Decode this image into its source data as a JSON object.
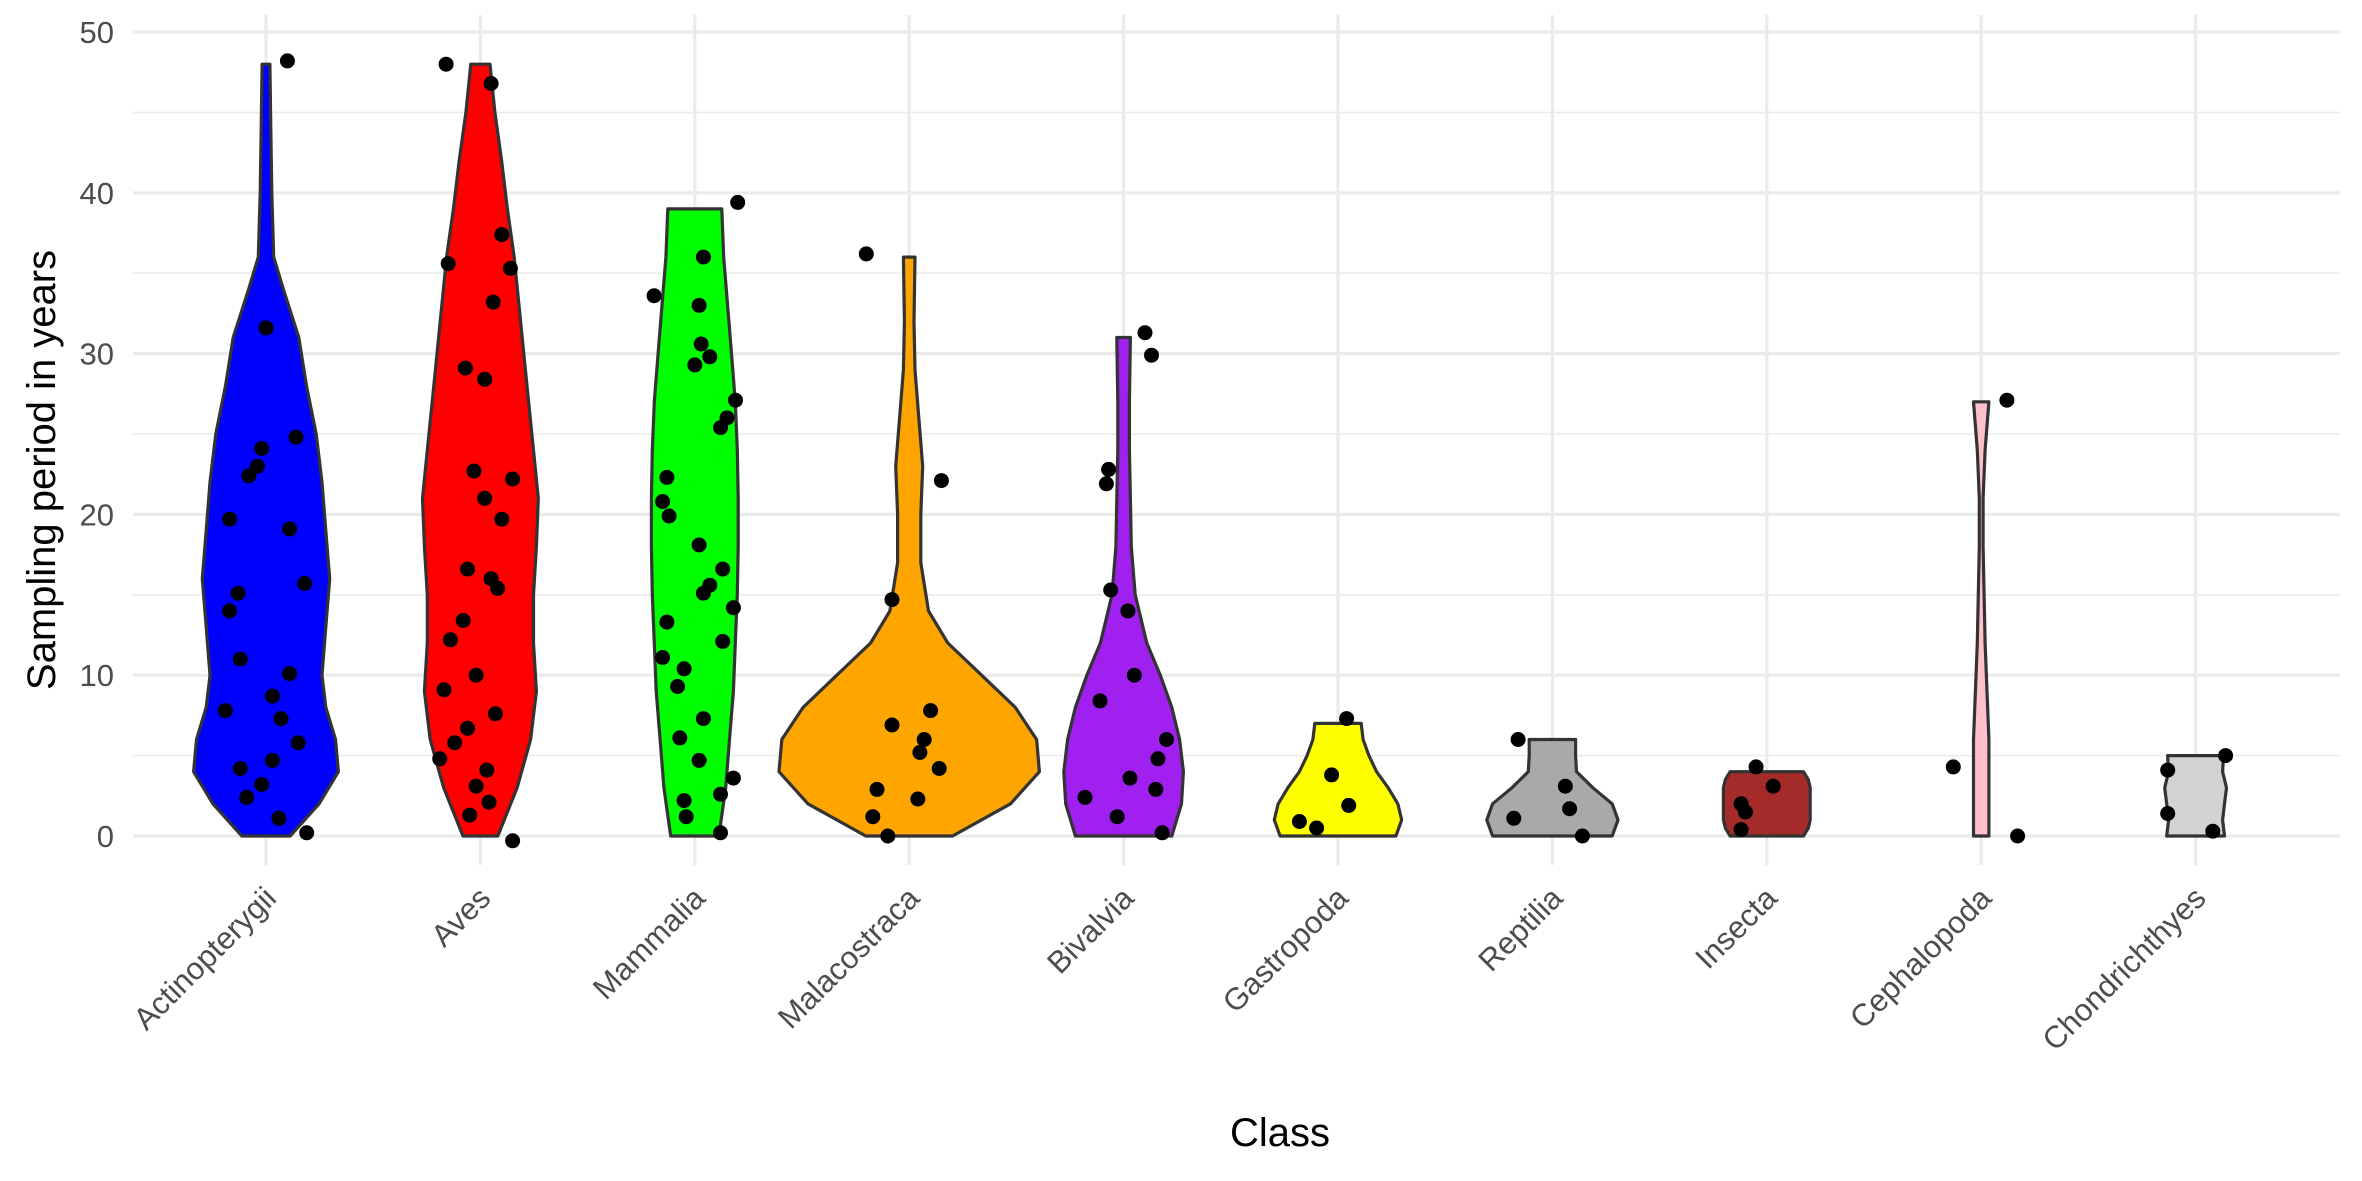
{
  "chart_data": {
    "type": "violin",
    "title": "",
    "xlabel": "Class",
    "ylabel": "Sampling period in years",
    "ylim": [
      -2.5,
      50
    ],
    "yticks": [
      0,
      10,
      20,
      30,
      40,
      50
    ],
    "grid": true,
    "legend": "none",
    "categories": [
      "Actinopterygii",
      "Aves",
      "Mammalia",
      "Malacostraca",
      "Bivalvia",
      "Gastropoda",
      "Reptilia",
      "Insecta",
      "Cephalopoda",
      "Chondrichthyes"
    ],
    "series": [
      {
        "name": "Actinopterygii",
        "color": "#0000FF",
        "range": [
          0,
          48
        ],
        "points": [
          48.2,
          31.6,
          24.8,
          24.1,
          23.0,
          22.4,
          19.7,
          19.1,
          15.7,
          15.1,
          14.0,
          11.0,
          10.1,
          8.7,
          7.8,
          7.3,
          5.8,
          4.7,
          4.2,
          3.2,
          2.4,
          1.1,
          0.2
        ],
        "jitter": [
          0.1,
          0.0,
          0.14,
          -0.02,
          -0.04,
          -0.08,
          -0.17,
          0.11,
          0.18,
          -0.13,
          -0.17,
          -0.12,
          0.11,
          0.03,
          -0.19,
          0.07,
          0.15,
          0.03,
          -0.12,
          -0.02,
          -0.09,
          0.06,
          0.19
        ],
        "profile": [
          [
            0,
            0.25
          ],
          [
            2,
            0.55
          ],
          [
            4,
            0.75
          ],
          [
            6,
            0.72
          ],
          [
            8,
            0.62
          ],
          [
            10,
            0.58
          ],
          [
            13,
            0.62
          ],
          [
            16,
            0.66
          ],
          [
            19,
            0.62
          ],
          [
            22,
            0.58
          ],
          [
            25,
            0.52
          ],
          [
            28,
            0.42
          ],
          [
            31,
            0.34
          ],
          [
            34,
            0.18
          ],
          [
            36,
            0.08
          ],
          [
            40,
            0.06
          ],
          [
            44,
            0.05
          ],
          [
            48,
            0.04
          ]
        ]
      },
      {
        "name": "Aves",
        "color": "#FF0000",
        "range": [
          0,
          48
        ],
        "points": [
          48.0,
          46.8,
          37.4,
          35.6,
          35.3,
          33.2,
          29.1,
          28.4,
          22.7,
          22.2,
          21.0,
          19.7,
          16.6,
          16.0,
          15.4,
          13.4,
          12.2,
          10.0,
          9.1,
          7.6,
          6.7,
          5.8,
          4.8,
          4.1,
          3.1,
          2.1,
          1.3,
          -0.3
        ],
        "jitter": [
          -0.16,
          0.05,
          0.1,
          -0.15,
          0.14,
          0.06,
          -0.07,
          0.02,
          -0.03,
          0.15,
          0.02,
          0.1,
          -0.06,
          0.05,
          0.08,
          -0.08,
          -0.14,
          -0.02,
          -0.17,
          0.07,
          -0.06,
          -0.12,
          -0.19,
          0.03,
          -0.02,
          0.04,
          -0.05,
          0.15
        ],
        "profile": [
          [
            0,
            0.18
          ],
          [
            3,
            0.38
          ],
          [
            6,
            0.52
          ],
          [
            9,
            0.58
          ],
          [
            12,
            0.55
          ],
          [
            15,
            0.55
          ],
          [
            18,
            0.58
          ],
          [
            21,
            0.6
          ],
          [
            24,
            0.55
          ],
          [
            27,
            0.5
          ],
          [
            30,
            0.45
          ],
          [
            33,
            0.4
          ],
          [
            36,
            0.35
          ],
          [
            39,
            0.28
          ],
          [
            42,
            0.22
          ],
          [
            45,
            0.15
          ],
          [
            48,
            0.1
          ]
        ]
      },
      {
        "name": "Mammalia",
        "color": "#00FF00",
        "range": [
          0,
          39
        ],
        "points": [
          39.4,
          36.0,
          33.6,
          33.0,
          30.6,
          29.8,
          29.3,
          27.1,
          26.0,
          25.4,
          22.3,
          20.8,
          19.9,
          18.1,
          16.6,
          15.6,
          15.1,
          14.2,
          13.3,
          12.1,
          11.1,
          10.4,
          9.3,
          7.3,
          6.1,
          4.7,
          3.6,
          2.6,
          2.2,
          1.2,
          0.2
        ],
        "jitter": [
          0.2,
          0.04,
          -0.19,
          0.02,
          0.03,
          0.07,
          0.0,
          0.19,
          0.15,
          0.12,
          -0.13,
          -0.15,
          -0.12,
          0.02,
          0.13,
          0.07,
          0.04,
          0.18,
          -0.13,
          0.13,
          -0.15,
          -0.05,
          -0.08,
          0.04,
          -0.07,
          0.02,
          0.18,
          0.12,
          -0.05,
          -0.04,
          0.12
        ],
        "profile": [
          [
            0,
            0.25
          ],
          [
            3,
            0.32
          ],
          [
            6,
            0.36
          ],
          [
            9,
            0.4
          ],
          [
            12,
            0.42
          ],
          [
            15,
            0.44
          ],
          [
            18,
            0.45
          ],
          [
            21,
            0.45
          ],
          [
            24,
            0.44
          ],
          [
            27,
            0.42
          ],
          [
            30,
            0.38
          ],
          [
            33,
            0.34
          ],
          [
            36,
            0.3
          ],
          [
            39,
            0.28
          ]
        ]
      },
      {
        "name": "Malacostraca",
        "color": "#FFA500",
        "range": [
          0,
          36
        ],
        "points": [
          36.2,
          22.1,
          14.7,
          7.8,
          6.9,
          6.0,
          5.2,
          4.2,
          2.9,
          2.3,
          1.2,
          0.0
        ],
        "jitter": [
          -0.2,
          0.15,
          -0.08,
          0.1,
          -0.08,
          0.07,
          0.05,
          0.14,
          -0.15,
          0.04,
          -0.17,
          -0.1
        ],
        "profile": [
          [
            0,
            0.45
          ],
          [
            2,
            1.05
          ],
          [
            4,
            1.35
          ],
          [
            6,
            1.32
          ],
          [
            8,
            1.1
          ],
          [
            10,
            0.75
          ],
          [
            12,
            0.4
          ],
          [
            14,
            0.2
          ],
          [
            17,
            0.12
          ],
          [
            20,
            0.12
          ],
          [
            23,
            0.14
          ],
          [
            26,
            0.1
          ],
          [
            29,
            0.06
          ],
          [
            32,
            0.05
          ],
          [
            36,
            0.06
          ]
        ]
      },
      {
        "name": "Bivalvia",
        "color": "#A020F0",
        "range": [
          0,
          31
        ],
        "points": [
          31.3,
          29.9,
          22.8,
          21.9,
          15.3,
          14.0,
          10.0,
          8.4,
          6.0,
          4.8,
          3.6,
          2.9,
          2.4,
          1.2,
          0.2
        ],
        "jitter": [
          0.1,
          0.13,
          -0.07,
          -0.08,
          -0.06,
          0.02,
          0.05,
          -0.11,
          0.2,
          0.16,
          0.03,
          0.15,
          -0.18,
          -0.03,
          0.18
        ],
        "profile": [
          [
            0,
            0.5
          ],
          [
            2,
            0.6
          ],
          [
            4,
            0.62
          ],
          [
            6,
            0.58
          ],
          [
            8,
            0.5
          ],
          [
            10,
            0.38
          ],
          [
            12,
            0.24
          ],
          [
            15,
            0.12
          ],
          [
            18,
            0.08
          ],
          [
            21,
            0.07
          ],
          [
            24,
            0.06
          ],
          [
            27,
            0.06
          ],
          [
            31,
            0.07
          ]
        ]
      },
      {
        "name": "Gastropoda",
        "color": "#FFFF00",
        "range": [
          0,
          7
        ],
        "points": [
          7.3,
          3.8,
          1.9,
          0.9,
          0.5
        ],
        "jitter": [
          0.04,
          -0.03,
          0.05,
          -0.18,
          -0.1
        ],
        "profile": [
          [
            0,
            0.6
          ],
          [
            1,
            0.66
          ],
          [
            2,
            0.62
          ],
          [
            3,
            0.52
          ],
          [
            4,
            0.4
          ],
          [
            5,
            0.32
          ],
          [
            6,
            0.26
          ],
          [
            7,
            0.24
          ]
        ]
      },
      {
        "name": "Reptilia",
        "color": "#A9A9A9",
        "range": [
          0,
          6
        ],
        "points": [
          6.0,
          3.1,
          1.7,
          1.1,
          0.0
        ],
        "jitter": [
          -0.16,
          0.06,
          0.08,
          -0.18,
          0.14
        ],
        "profile": [
          [
            0,
            0.62
          ],
          [
            1,
            0.68
          ],
          [
            2,
            0.62
          ],
          [
            3,
            0.42
          ],
          [
            4,
            0.25
          ],
          [
            5,
            0.24
          ],
          [
            6,
            0.24
          ]
        ]
      },
      {
        "name": "Insecta",
        "color": "#A52A2A",
        "range": [
          0,
          4
        ],
        "points": [
          4.3,
          3.1,
          2.0,
          1.5,
          0.4
        ],
        "jitter": [
          -0.05,
          0.03,
          -0.12,
          -0.1,
          -0.12
        ],
        "profile": [
          [
            0,
            0.38
          ],
          [
            0.5,
            0.43
          ],
          [
            1,
            0.45
          ],
          [
            2,
            0.45
          ],
          [
            3,
            0.45
          ],
          [
            3.5,
            0.43
          ],
          [
            4,
            0.38
          ]
        ]
      },
      {
        "name": "Cephalopoda",
        "color": "#FFC0CB",
        "range": [
          0,
          27
        ],
        "points": [
          27.1,
          4.3,
          0.0
        ],
        "jitter": [
          0.12,
          -0.13,
          0.17
        ],
        "profile": [
          [
            0,
            0.08
          ],
          [
            3,
            0.08
          ],
          [
            6,
            0.08
          ],
          [
            9,
            0.06
          ],
          [
            12,
            0.04
          ],
          [
            15,
            0.03
          ],
          [
            18,
            0.02
          ],
          [
            21,
            0.02
          ],
          [
            24,
            0.04
          ],
          [
            27,
            0.08
          ]
        ]
      },
      {
        "name": "Chondrichthyes",
        "color": "#D3D3D3",
        "range": [
          0,
          5
        ],
        "points": [
          5.0,
          4.1,
          1.4,
          0.3
        ],
        "jitter": [
          0.14,
          -0.13,
          -0.13,
          0.08
        ],
        "profile": [
          [
            0,
            0.3
          ],
          [
            1,
            0.28
          ],
          [
            2,
            0.3
          ],
          [
            3,
            0.32
          ],
          [
            4,
            0.28
          ],
          [
            5,
            0.29
          ]
        ]
      }
    ]
  }
}
